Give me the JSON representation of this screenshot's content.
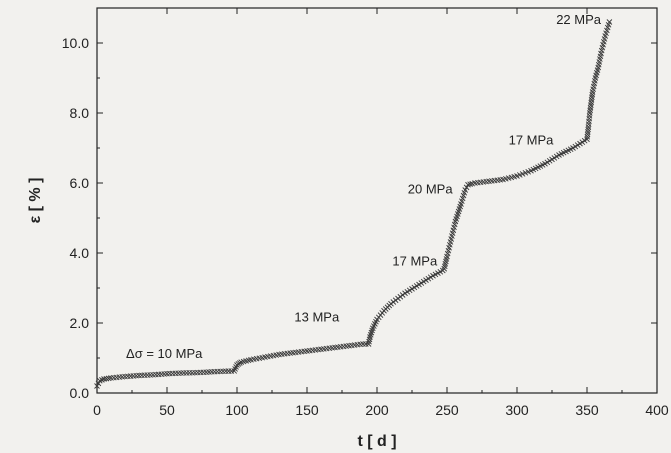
{
  "chart_data": {
    "type": "scatter",
    "xlabel": "t [ d ]",
    "ylabel": "ε [ % ]",
    "xlim": [
      0,
      400
    ],
    "ylim": [
      0,
      11
    ],
    "xticks": [
      0,
      50,
      100,
      150,
      200,
      250,
      300,
      350,
      400
    ],
    "yticks": [
      0.0,
      2.0,
      4.0,
      6.0,
      8.0,
      10.0
    ],
    "xtick_labels": [
      "0",
      "50",
      "100",
      "150",
      "200",
      "250",
      "300",
      "350",
      "400"
    ],
    "ytick_labels": [
      "0.0",
      "2.0",
      "4.0",
      "6.0",
      "8.0",
      "10.0"
    ],
    "grid": false,
    "series": [
      {
        "name": "",
        "marker": "x",
        "x": [
          0,
          2,
          5,
          10,
          20,
          30,
          40,
          50,
          60,
          70,
          80,
          90,
          98,
          100,
          101,
          103,
          110,
          130,
          150,
          170,
          190,
          194,
          195,
          197,
          200,
          205,
          210,
          220,
          230,
          240,
          247,
          248,
          250,
          253,
          256,
          260,
          263,
          265,
          268,
          270,
          280,
          290,
          300,
          310,
          320,
          330,
          340,
          350,
          351,
          352,
          354,
          356,
          358,
          360,
          363,
          366
        ],
        "y": [
          0.2,
          0.35,
          0.4,
          0.43,
          0.47,
          0.5,
          0.52,
          0.55,
          0.57,
          0.58,
          0.6,
          0.62,
          0.63,
          0.8,
          0.83,
          0.88,
          0.95,
          1.1,
          1.2,
          1.3,
          1.4,
          1.4,
          1.6,
          1.85,
          2.1,
          2.35,
          2.55,
          2.85,
          3.1,
          3.35,
          3.5,
          3.55,
          3.9,
          4.4,
          4.9,
          5.4,
          5.8,
          5.95,
          5.98,
          6.0,
          6.05,
          6.1,
          6.2,
          6.35,
          6.55,
          6.8,
          7.0,
          7.25,
          7.6,
          8.0,
          8.6,
          9.0,
          9.3,
          9.7,
          10.2,
          10.6
        ]
      }
    ],
    "annotations": [
      {
        "text": "Δσ = 10 MPa",
        "x": 48,
        "y": 1.0
      },
      {
        "text": "13 MPa",
        "x": 157,
        "y": 2.05
      },
      {
        "text": "17 MPa",
        "x": 227,
        "y": 3.65
      },
      {
        "text": "20 MPa",
        "x": 238,
        "y": 5.7
      },
      {
        "text": "17 MPa",
        "x": 310,
        "y": 7.1
      },
      {
        "text": "22 MPa",
        "x": 344,
        "y": 10.55
      }
    ]
  }
}
